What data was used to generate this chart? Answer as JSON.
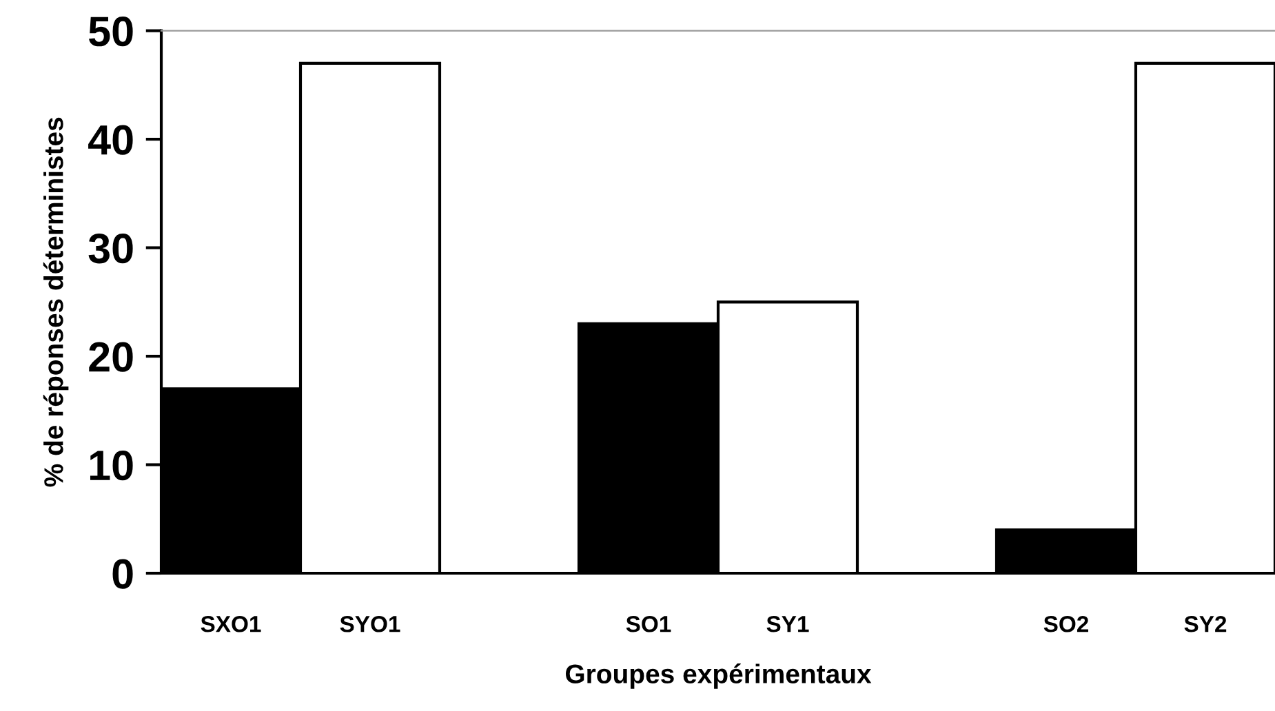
{
  "chart_data": {
    "type": "bar",
    "xlabel": "Groupes expérimentaux",
    "ylabel": "% de réponses déterministes",
    "categories": [
      "SXO1",
      "SYO1",
      null,
      "SO1",
      "SY1",
      null,
      "SO2",
      "SY2"
    ],
    "values": [
      17,
      47,
      null,
      23,
      25,
      null,
      4,
      47
    ],
    "colors": [
      "#000000",
      "#ffffff",
      null,
      "#000000",
      "#ffffff",
      null,
      "#000000",
      "#ffffff"
    ],
    "ylim": [
      0,
      50
    ],
    "yticks": [
      0,
      10,
      20,
      30,
      40,
      50
    ],
    "grid": false,
    "legend": false
  }
}
